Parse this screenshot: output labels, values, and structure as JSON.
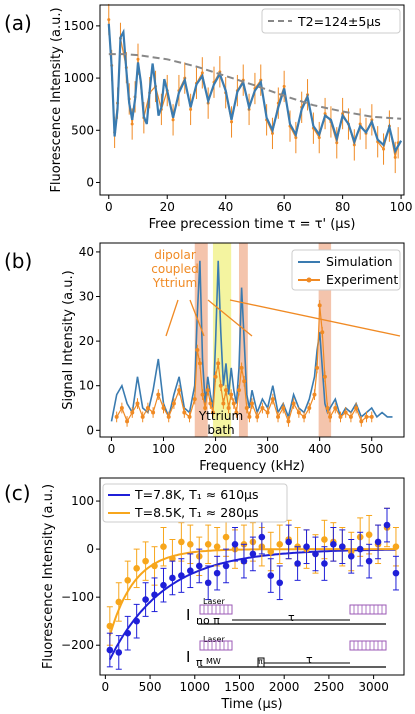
{
  "chart_data": [
    {
      "panel": "(a)",
      "type": "line",
      "xlabel": "Free precession time τ = τ' (μs)",
      "ylabel": "Fluorescence Intensity (a.u.)",
      "xlim": [
        -3,
        101
      ],
      "ylim": [
        -120,
        1700
      ],
      "xticks": [
        0,
        20,
        40,
        60,
        80,
        100
      ],
      "yticks": [
        0,
        500,
        1000,
        1500
      ],
      "legend": "top-right",
      "series": [
        {
          "name": "T2=124±5μs",
          "style": "dashed",
          "color": "#888888",
          "x": [
            0,
            5,
            10,
            20,
            30,
            40,
            50,
            60,
            70,
            80,
            90,
            100
          ],
          "y": [
            1230,
            1230,
            1220,
            1180,
            1110,
            1020,
            930,
            830,
            740,
            680,
            630,
            610
          ]
        },
        {
          "name": "",
          "style": "line",
          "color": "#3a7bb0",
          "x": [
            0,
            1,
            2,
            3,
            4,
            5,
            6,
            7,
            8,
            9,
            10,
            11,
            12,
            13,
            14,
            15,
            16,
            17,
            18,
            19,
            20,
            22,
            24,
            26,
            28,
            30,
            32,
            34,
            36,
            38,
            40,
            42,
            44,
            46,
            48,
            50,
            52,
            54,
            56,
            58,
            60,
            62,
            64,
            66,
            68,
            70,
            72,
            74,
            76,
            78,
            80,
            82,
            84,
            86,
            88,
            90,
            92,
            94,
            96,
            98,
            100
          ],
          "y": [
            1520,
            1100,
            440,
            700,
            1390,
            1440,
            1080,
            760,
            600,
            800,
            1150,
            960,
            630,
            560,
            880,
            1140,
            920,
            640,
            720,
            990,
            880,
            620,
            860,
            980,
            720,
            940,
            1020,
            780,
            940,
            1040,
            880,
            600,
            870,
            960,
            720,
            880,
            960,
            620,
            500,
            720,
            900,
            560,
            460,
            700,
            820,
            540,
            460,
            640,
            600,
            420,
            640,
            560,
            390,
            540,
            480,
            580,
            410,
            360,
            530,
            300,
            400
          ]
        },
        {
          "name": "",
          "style": "errorbar",
          "color": "#f08a24",
          "x": [
            0,
            1,
            2,
            3,
            4,
            6,
            7,
            8,
            9,
            10,
            12,
            14,
            16,
            18,
            20,
            22,
            24,
            26,
            28,
            30,
            32,
            34,
            36,
            38,
            40,
            42,
            44,
            46,
            48,
            50,
            52,
            54,
            56,
            58,
            60,
            62,
            64,
            66,
            68,
            70,
            72,
            74,
            76,
            78,
            80,
            82,
            84,
            86,
            88,
            90,
            92,
            94,
            96,
            98,
            99
          ],
          "y": [
            1560,
            1120,
            480,
            760,
            1380,
            1100,
            800,
            560,
            820,
            1180,
            620,
            860,
            920,
            700,
            880,
            600,
            880,
            1000,
            700,
            950,
            1050,
            760,
            960,
            1060,
            860,
            580,
            880,
            980,
            700,
            900,
            980,
            600,
            470,
            760,
            920,
            540,
            430,
            720,
            840,
            520,
            430,
            660,
            580,
            380,
            660,
            560,
            360,
            560,
            470,
            600,
            390,
            320,
            540,
            240,
            380
          ],
          "err": [
            150,
            150,
            150,
            150,
            150,
            150,
            150,
            150,
            150,
            150,
            150,
            150,
            150,
            150,
            150,
            150,
            150,
            150,
            150,
            150,
            150,
            150,
            150,
            150,
            150,
            150,
            150,
            150,
            150,
            150,
            150,
            150,
            150,
            150,
            150,
            150,
            150,
            150,
            150,
            150,
            150,
            150,
            150,
            150,
            150,
            150,
            150,
            150,
            150,
            150,
            150,
            150,
            150,
            150,
            150
          ]
        }
      ]
    },
    {
      "panel": "(b)",
      "type": "line",
      "xlabel": "Frequency (kHz)",
      "ylabel": "Signal Intensity (a.u.)",
      "xlim": [
        -22,
        562
      ],
      "ylim": [
        -1.5,
        42
      ],
      "xticks": [
        0,
        100,
        200,
        300,
        400,
        500
      ],
      "yticks": [
        0,
        10,
        20,
        30,
        40
      ],
      "legend": "top-right",
      "bands": [
        {
          "from": 160,
          "to": 185,
          "color": "#f0b090"
        },
        {
          "from": 195,
          "to": 230,
          "color": "#f0f080"
        },
        {
          "from": 245,
          "to": 262,
          "color": "#f0b090"
        },
        {
          "from": 398,
          "to": 422,
          "color": "#f0b090"
        }
      ],
      "annotations": [
        {
          "text": "dipolar",
          "color": "#f08a24"
        },
        {
          "text": "coupled",
          "color": "#f08a24"
        },
        {
          "text": "Yttrium",
          "color": "#f08a24"
        },
        {
          "text": "Yttrium",
          "color": "#000000"
        },
        {
          "text": "bath",
          "color": "#000000"
        }
      ],
      "series": [
        {
          "name": "Simulation",
          "style": "line",
          "color": "#3a7bb0",
          "x": [
            0,
            10,
            20,
            30,
            40,
            50,
            60,
            70,
            80,
            90,
            100,
            110,
            120,
            130,
            140,
            150,
            160,
            165,
            170,
            175,
            180,
            185,
            190,
            195,
            200,
            205,
            210,
            215,
            220,
            225,
            230,
            235,
            240,
            245,
            250,
            255,
            260,
            265,
            270,
            280,
            290,
            300,
            310,
            320,
            330,
            340,
            350,
            360,
            370,
            380,
            390,
            395,
            400,
            405,
            410,
            415,
            420,
            430,
            440,
            450,
            460,
            470,
            480,
            490,
            500,
            510,
            520,
            530,
            540
          ],
          "y": [
            2,
            8,
            10,
            6,
            4,
            12,
            5,
            4,
            9,
            16,
            6,
            3,
            8,
            12,
            5,
            4,
            10,
            26,
            38,
            16,
            6,
            12,
            8,
            5,
            20,
            38,
            22,
            10,
            15,
            8,
            14,
            9,
            6,
            14,
            32,
            20,
            8,
            5,
            9,
            4,
            7,
            5,
            10,
            4,
            6,
            3,
            8,
            5,
            4,
            7,
            12,
            18,
            22,
            14,
            6,
            4,
            5,
            7,
            3,
            5,
            4,
            6,
            3,
            4,
            5,
            3,
            4,
            3,
            3
          ]
        },
        {
          "name": "Experiment",
          "style": "errorbar",
          "color": "#f08a24",
          "x": [
            10,
            20,
            30,
            40,
            50,
            60,
            70,
            80,
            90,
            100,
            110,
            120,
            130,
            140,
            150,
            160,
            165,
            170,
            175,
            180,
            185,
            190,
            195,
            200,
            205,
            210,
            215,
            220,
            225,
            230,
            235,
            240,
            245,
            250,
            255,
            260,
            265,
            270,
            280,
            290,
            300,
            310,
            320,
            330,
            340,
            350,
            360,
            370,
            380,
            390,
            395,
            400,
            405,
            410,
            415,
            420,
            430,
            440,
            450,
            460,
            470,
            480,
            490,
            500
          ],
          "y": [
            3,
            5,
            2,
            4,
            6,
            3,
            5,
            4,
            8,
            5,
            3,
            6,
            9,
            4,
            3,
            7,
            18,
            15,
            8,
            5,
            9,
            6,
            4,
            12,
            15,
            10,
            6,
            9,
            5,
            8,
            6,
            4,
            9,
            14,
            11,
            5,
            3,
            6,
            3,
            5,
            4,
            7,
            3,
            5,
            2,
            6,
            4,
            3,
            5,
            8,
            14,
            28,
            22,
            12,
            5,
            3,
            5,
            3,
            4,
            3,
            5,
            2,
            3,
            3
          ],
          "err": [
            1.2,
            1.2,
            1.2,
            1.2,
            1.2,
            1.2,
            1.2,
            1.2,
            1.2,
            1.2,
            1.2,
            1.2,
            1.2,
            1.2,
            1.2,
            1.2,
            1.2,
            1.2,
            1.2,
            1.2,
            1.2,
            1.2,
            1.2,
            1.2,
            1.2,
            1.2,
            1.2,
            1.2,
            1.2,
            1.2,
            1.2,
            1.2,
            1.2,
            1.2,
            1.2,
            1.2,
            1.2,
            1.2,
            1.2,
            1.2,
            1.2,
            1.2,
            1.2,
            1.2,
            1.2,
            1.2,
            1.2,
            1.2,
            1.2,
            1.2,
            1.2,
            1.2,
            1.2,
            1.2,
            1.2,
            1.2,
            1.2,
            1.2,
            1.2,
            1.2,
            1.2,
            1.2,
            1.2,
            1.2
          ]
        }
      ]
    },
    {
      "panel": "(c)",
      "type": "scatter",
      "xlabel": "Time (μs)",
      "ylabel": "Fluorescence Intensity (a.u.)",
      "xlim": [
        -60,
        3340
      ],
      "ylim": [
        -262,
        148
      ],
      "xticks": [
        0,
        500,
        1000,
        1500,
        2000,
        2500,
        3000
      ],
      "yticks": [
        -200,
        -100,
        0,
        100
      ],
      "legend": "top-left",
      "series": [
        {
          "name": "T=7.8K, T₁ ≈ 610μs",
          "style": "errorbar",
          "color": "#1f1fd8",
          "x": [
            50,
            150,
            250,
            350,
            450,
            550,
            650,
            750,
            850,
            950,
            1050,
            1150,
            1250,
            1350,
            1450,
            1550,
            1650,
            1750,
            1850,
            1950,
            2050,
            2150,
            2250,
            2350,
            2450,
            2550,
            2650,
            2750,
            2850,
            2950,
            3050,
            3150,
            3250
          ],
          "y": [
            -210,
            -215,
            -175,
            -150,
            -105,
            -95,
            -75,
            -60,
            -55,
            -45,
            -35,
            -70,
            -50,
            -35,
            10,
            -25,
            -10,
            25,
            -55,
            -70,
            15,
            -30,
            5,
            -10,
            -30,
            10,
            5,
            -15,
            0,
            -25,
            15,
            50,
            -50
          ],
          "err": [
            35,
            35,
            35,
            35,
            35,
            35,
            35,
            35,
            35,
            35,
            35,
            35,
            35,
            35,
            35,
            35,
            35,
            35,
            35,
            35,
            35,
            35,
            35,
            35,
            35,
            35,
            35,
            35,
            35,
            35,
            35,
            35,
            35
          ]
        },
        {
          "name": "T=8.5K, T₁ ≈ 280μs",
          "style": "errorbar",
          "color": "#f7a61c",
          "x": [
            50,
            150,
            250,
            350,
            450,
            550,
            650,
            750,
            850,
            950,
            1050,
            1150,
            1250,
            1350,
            1450,
            1550,
            1650,
            1750,
            1850,
            1950,
            2050,
            2150,
            2250,
            2350,
            2450,
            2550,
            2650,
            2750,
            2850,
            2950,
            3050,
            3150,
            3250
          ],
          "y": [
            -160,
            -110,
            -65,
            -40,
            -25,
            -35,
            5,
            -20,
            15,
            10,
            -15,
            10,
            5,
            25,
            0,
            10,
            15,
            5,
            -5,
            10,
            20,
            5,
            0,
            -10,
            20,
            15,
            5,
            -5,
            25,
            30,
            10,
            45,
            5
          ],
          "err": [
            40,
            40,
            40,
            40,
            40,
            40,
            40,
            40,
            40,
            40,
            40,
            40,
            40,
            40,
            40,
            40,
            40,
            40,
            40,
            40,
            40,
            40,
            40,
            40,
            40,
            40,
            40,
            40,
            40,
            40,
            40,
            40,
            40
          ]
        },
        {
          "name": "",
          "style": "fit",
          "color": "#1f1fd8",
          "x0": 50,
          "amp": -230,
          "tau": 610
        },
        {
          "name": "",
          "style": "fit",
          "color": "#f7a61c",
          "x0": 50,
          "amp": -180,
          "tau": 280
        }
      ],
      "inset": {
        "rows": [
          {
            "label": "I",
            "subscript": "no π",
            "pulse1": "Laser",
            "delay": "τ"
          },
          {
            "label": "I",
            "subscript": "π",
            "pulse1": "Laser",
            "pulse2": "MW",
            "pulse3": "π",
            "delay": "τ"
          }
        ],
        "laser_color": "#9b59b6"
      }
    }
  ]
}
